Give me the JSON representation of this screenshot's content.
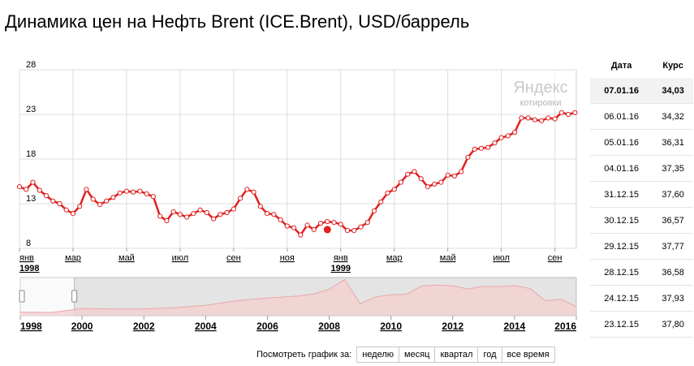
{
  "title": "Динамика цен на Нефть Brent (ICE.Brent), USD/баррель",
  "watermark": {
    "line1": "Яндекс",
    "line2": "котировки"
  },
  "colors": {
    "line": "#e02020",
    "nav_fill": "#f4d0d0",
    "nav_line": "#e8a8a8",
    "window": "#e4e4e4"
  },
  "table": {
    "headers": {
      "date": "Дата",
      "rate": "Курс"
    },
    "rows": [
      {
        "date": "07.01.16",
        "rate": "34,03"
      },
      {
        "date": "06.01.16",
        "rate": "34,32"
      },
      {
        "date": "05.01.16",
        "rate": "36,31"
      },
      {
        "date": "04.01.16",
        "rate": "37,35"
      },
      {
        "date": "31.12.15",
        "rate": "37,60"
      },
      {
        "date": "30.12.15",
        "rate": "36,57"
      },
      {
        "date": "29.12.15",
        "rate": "37,77"
      },
      {
        "date": "28.12.15",
        "rate": "36,58"
      },
      {
        "date": "24.12.15",
        "rate": "37,93"
      },
      {
        "date": "23.12.15",
        "rate": "37,80"
      }
    ]
  },
  "period_bar": {
    "label": "Посмотреть график за:",
    "buttons": [
      "неделю",
      "месяц",
      "квартал",
      "год",
      "все время"
    ]
  },
  "chart_data": {
    "type": "line",
    "title": "Динамика цен на Нефть Brent (ICE.Brent), USD/баррель",
    "ylim": [
      8,
      28
    ],
    "yticks": [
      8,
      13,
      18,
      23,
      28
    ],
    "grid": true,
    "x_month_labels": [
      {
        "label": "янв",
        "pos": 0
      },
      {
        "label": "мар",
        "pos": 2
      },
      {
        "label": "май",
        "pos": 4
      },
      {
        "label": "июл",
        "pos": 6
      },
      {
        "label": "сен",
        "pos": 8
      },
      {
        "label": "ноя",
        "pos": 10
      },
      {
        "label": "янв",
        "pos": 12
      },
      {
        "label": "мар",
        "pos": 14
      },
      {
        "label": "май",
        "pos": 16
      },
      {
        "label": "июл",
        "pos": 18
      },
      {
        "label": "сен",
        "pos": 20
      }
    ],
    "x_year_labels": [
      {
        "label": "1998",
        "pos": 0
      },
      {
        "label": "1999",
        "pos": 12
      }
    ],
    "x_range_months": [
      0,
      20.8
    ],
    "series": [
      {
        "x": [
          0,
          0.25,
          0.5,
          0.75,
          1,
          1.25,
          1.5,
          1.75,
          2,
          2.25,
          2.5,
          2.75,
          3,
          3.25,
          3.5,
          3.75,
          4,
          4.25,
          4.5,
          4.75,
          5,
          5.25,
          5.5,
          5.75,
          6,
          6.25,
          6.5,
          6.75,
          7,
          7.25,
          7.5,
          7.75,
          8,
          8.25,
          8.5,
          8.75,
          9,
          9.25,
          9.5,
          9.75,
          10,
          10.25,
          10.5,
          10.75,
          11,
          11.25,
          11.5,
          11.75,
          12,
          12.25,
          12.5,
          12.75,
          13,
          13.25,
          13.5,
          13.75,
          14,
          14.25,
          14.5,
          14.75,
          15,
          15.25,
          15.5,
          15.75,
          16,
          16.25,
          16.5,
          16.75,
          17,
          17.25,
          17.5,
          17.75,
          18,
          18.25,
          18.5,
          18.75,
          19,
          19.25,
          19.5,
          19.75,
          20,
          20.25,
          20.5,
          20.75
        ],
        "values": [
          14.9,
          14.6,
          15.4,
          14.5,
          13.9,
          13.3,
          13.0,
          12.3,
          11.9,
          12.7,
          14.6,
          13.5,
          12.9,
          13.3,
          13.7,
          14.2,
          14.4,
          14.3,
          14.4,
          14.1,
          13.8,
          11.6,
          11.1,
          12.1,
          11.8,
          11.5,
          11.9,
          12.3,
          12.0,
          11.3,
          11.8,
          12.0,
          12.4,
          13.6,
          14.6,
          14.3,
          12.7,
          11.9,
          11.8,
          11.2,
          10.5,
          10.3,
          9.5,
          10.6,
          10.1,
          10.8,
          11.0,
          10.9,
          10.7,
          10.0,
          10.0,
          10.4,
          10.9,
          12.2,
          13.2,
          14.2,
          14.6,
          15.4,
          16.3,
          16.6,
          15.8,
          14.9,
          15.2,
          15.4,
          16.2,
          16.1,
          16.6,
          18.2,
          19.1,
          19.2,
          19.3,
          19.8,
          20.4,
          20.6,
          21.0,
          22.6,
          22.6,
          22.4,
          22.3,
          22.6,
          22.5,
          23.2,
          23.0,
          23.2
        ]
      }
    ],
    "navigator": {
      "years": [
        "1998",
        "2000",
        "2002",
        "2004",
        "2006",
        "2008",
        "2010",
        "2012",
        "2014",
        "2016"
      ],
      "x": [
        1998,
        1999,
        2000,
        2001,
        2002,
        2003,
        2004,
        2005,
        2006,
        2007,
        2007.5,
        2008,
        2008.5,
        2009,
        2009.5,
        2010,
        2010.5,
        2011,
        2011.5,
        2012,
        2012.5,
        2013,
        2013.5,
        2014,
        2014.5,
        2015,
        2015.5,
        2016
      ],
      "values": [
        13,
        12,
        26,
        25,
        25,
        29,
        38,
        55,
        65,
        72,
        80,
        97,
        133,
        44,
        69,
        77,
        78,
        110,
        112,
        110,
        98,
        108,
        107,
        110,
        100,
        55,
        60,
        34
      ],
      "ylim": [
        0,
        140
      ],
      "window_years": [
        1999.75,
        2016
      ]
    }
  }
}
